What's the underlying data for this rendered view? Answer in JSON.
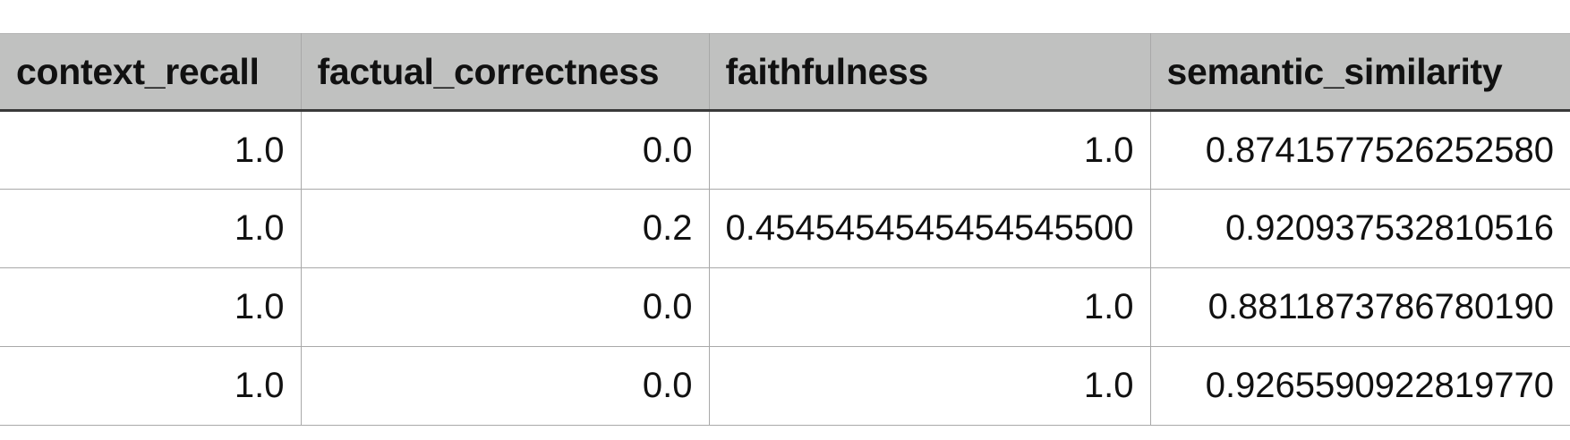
{
  "table": {
    "headers": [
      "context_recall",
      "factual_correctness",
      "faithfulness",
      "semantic_similarity"
    ],
    "rows": [
      [
        "1.0",
        "0.0",
        "1.0",
        "0.8741577526252580"
      ],
      [
        "1.0",
        "0.2",
        "0.4545454545454545500",
        "0.920937532810516"
      ],
      [
        "1.0",
        "0.0",
        "1.0",
        "0.8811873786780190"
      ],
      [
        "1.0",
        "0.0",
        "1.0",
        "0.9265590922819770"
      ]
    ]
  }
}
